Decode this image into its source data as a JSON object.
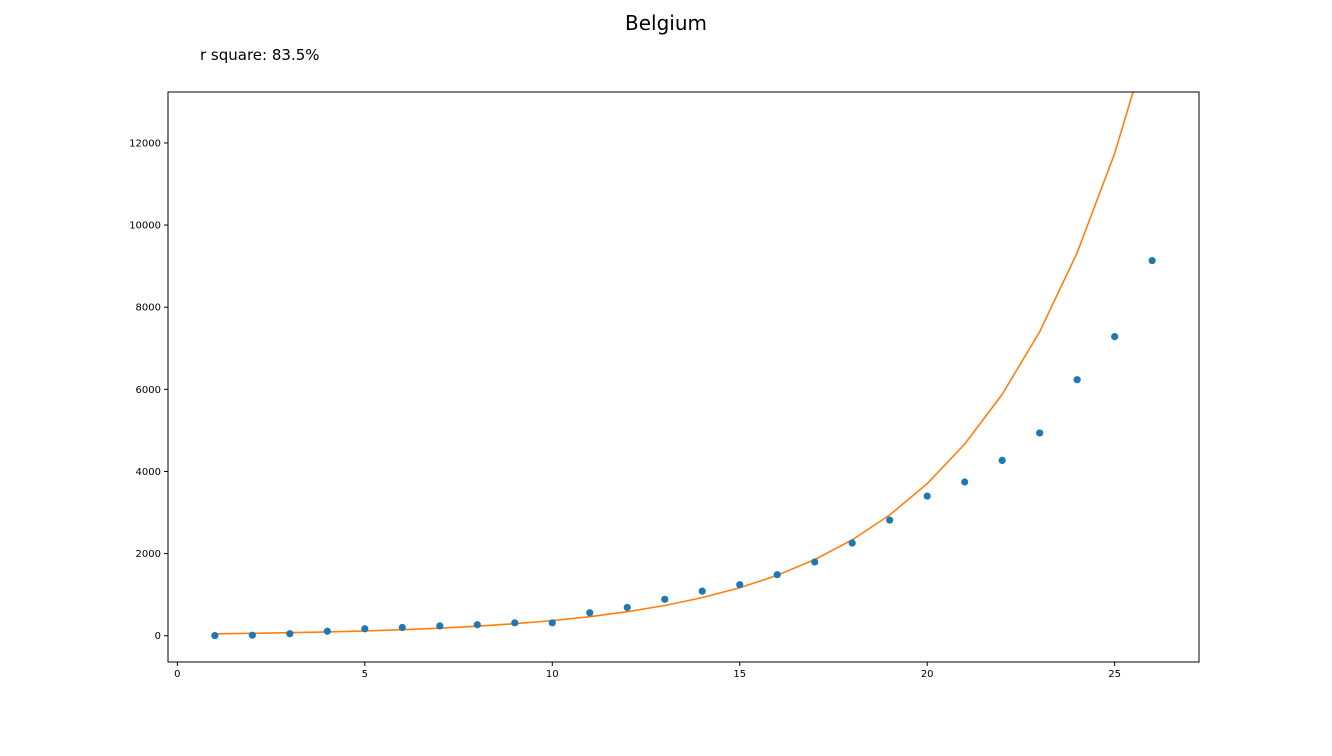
{
  "chart_data": {
    "type": "scatter",
    "title": "Belgium",
    "annotation": "r square: 83.5%",
    "xlabel": "",
    "ylabel": "",
    "xlim": [
      -0.25,
      27.25
    ],
    "ylim": [
      -640,
      13240
    ],
    "x_ticks": [
      0,
      5,
      10,
      15,
      20,
      25
    ],
    "y_ticks": [
      0,
      2000,
      4000,
      6000,
      8000,
      10000,
      12000
    ],
    "grid": false,
    "series": [
      {
        "kind": "points",
        "color": "#1f77b4",
        "x": [
          1,
          2,
          3,
          4,
          5,
          6,
          7,
          8,
          9,
          10,
          11,
          12,
          13,
          14,
          15,
          16,
          17,
          18,
          19,
          20,
          21,
          22,
          23,
          24,
          25,
          26
        ],
        "y": [
          2,
          13,
          50,
          109,
          169,
          200,
          239,
          267,
          314,
          314,
          559,
          689,
          886,
          1085,
          1243,
          1486,
          1795,
          2257,
          2815,
          3401,
          3743,
          4269,
          4937,
          6235,
          7284,
          9134
        ]
      },
      {
        "kind": "line",
        "color": "#ff7f0e",
        "x": [
          1,
          2,
          3,
          4,
          5,
          6,
          7,
          8,
          9,
          10,
          11,
          12,
          13,
          14,
          15,
          16,
          17,
          18,
          19,
          20,
          21,
          22,
          23,
          24,
          25,
          26
        ],
        "y": [
          46,
          58,
          73,
          92,
          116,
          146,
          184,
          232,
          292,
          368,
          464,
          584,
          736,
          927,
          1168,
          1471,
          1853,
          2334,
          2940,
          3703,
          4665,
          5876,
          7402,
          9324,
          11745,
          14795
        ]
      }
    ]
  }
}
